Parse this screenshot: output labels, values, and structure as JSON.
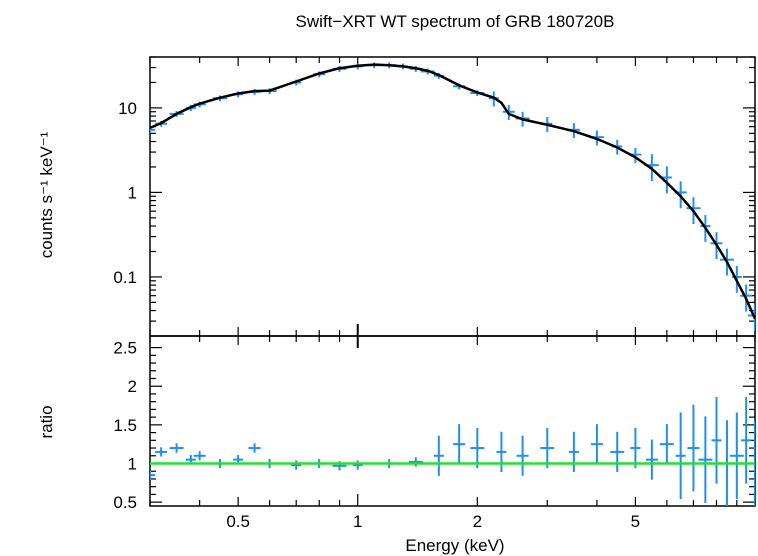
{
  "chart_data": [
    {
      "type": "scatter",
      "panel": "spectrum",
      "title": "Swift−XRT WT spectrum of GRB 180720B",
      "ylabel": "counts s⁻¹ keV⁻¹",
      "xlabel": "",
      "xscale": "log",
      "yscale": "log",
      "xlim": [
        0.3,
        10
      ],
      "ylim": [
        0.02,
        40
      ],
      "yticks": [
        {
          "value": 0.1,
          "label": "0.1"
        },
        {
          "value": 1,
          "label": "1"
        },
        {
          "value": 10,
          "label": "10"
        }
      ],
      "series": [
        {
          "role": "data",
          "color": "#1f8ff0",
          "x": [
            0.3,
            0.32,
            0.35,
            0.38,
            0.4,
            0.45,
            0.5,
            0.55,
            0.6,
            0.7,
            0.8,
            0.9,
            1.0,
            1.1,
            1.2,
            1.3,
            1.4,
            1.5,
            1.6,
            1.8,
            2.0,
            2.2,
            2.4,
            2.6,
            3.0,
            3.5,
            4.0,
            4.5,
            5.0,
            5.5,
            6.0,
            6.5,
            7.0,
            7.5,
            8.0,
            8.5,
            9.0,
            9.5,
            10.0
          ],
          "y": [
            5.5,
            6.5,
            8.5,
            10.0,
            11.0,
            13.0,
            14.5,
            15.5,
            15.8,
            20.0,
            25.0,
            29.0,
            31.0,
            32.0,
            32.0,
            31.0,
            29.0,
            27.0,
            24.0,
            18.0,
            15.0,
            13.0,
            9.0,
            7.5,
            6.5,
            5.5,
            4.5,
            3.5,
            2.8,
            2.1,
            1.5,
            1.0,
            0.65,
            0.4,
            0.25,
            0.16,
            0.1,
            0.06,
            0.035
          ]
        },
        {
          "role": "model",
          "color": "#000000",
          "x": [
            0.3,
            0.32,
            0.35,
            0.38,
            0.4,
            0.45,
            0.5,
            0.55,
            0.6,
            0.7,
            0.8,
            0.9,
            1.0,
            1.1,
            1.2,
            1.3,
            1.4,
            1.5,
            1.6,
            1.8,
            2.0,
            2.2,
            2.3,
            2.4,
            2.6,
            3.0,
            3.5,
            4.0,
            4.5,
            5.0,
            5.5,
            6.0,
            6.5,
            7.0,
            7.5,
            8.0,
            8.5,
            9.0,
            9.5,
            10.0
          ],
          "y": [
            5.8,
            6.6,
            8.5,
            10.2,
            11.2,
            13.2,
            14.8,
            15.8,
            16.0,
            20.5,
            25.5,
            29.5,
            31.5,
            32.5,
            32.0,
            31.0,
            29.5,
            27.5,
            24.5,
            18.5,
            15.2,
            13.2,
            11.5,
            8.5,
            7.3,
            6.3,
            5.3,
            4.3,
            3.4,
            2.6,
            1.9,
            1.3,
            0.9,
            0.6,
            0.38,
            0.24,
            0.15,
            0.09,
            0.055,
            0.032
          ]
        }
      ]
    },
    {
      "type": "scatter",
      "panel": "ratio",
      "title": "",
      "ylabel": "ratio",
      "xlabel": "Energy (keV)",
      "xscale": "log",
      "xlim": [
        0.3,
        10
      ],
      "ylim": [
        0.45,
        2.65
      ],
      "xticks": [
        {
          "value": 0.5,
          "label": "0.5"
        },
        {
          "value": 1,
          "label": "1"
        },
        {
          "value": 2,
          "label": "2"
        },
        {
          "value": 5,
          "label": "5"
        }
      ],
      "yticks": [
        {
          "value": 0.5,
          "label": "0.5"
        },
        {
          "value": 1,
          "label": "1"
        },
        {
          "value": 1.5,
          "label": "1.5"
        },
        {
          "value": 2,
          "label": "2"
        },
        {
          "value": 2.5,
          "label": "2.5"
        }
      ],
      "series": [
        {
          "role": "data",
          "color": "#1f8ff0",
          "x": [
            0.3,
            0.32,
            0.35,
            0.38,
            0.4,
            0.45,
            0.5,
            0.55,
            0.6,
            0.7,
            0.8,
            0.9,
            1.0,
            1.2,
            1.4,
            1.6,
            1.8,
            2.0,
            2.3,
            2.6,
            3.0,
            3.5,
            4.0,
            4.5,
            5.0,
            5.5,
            6.0,
            6.5,
            7.0,
            7.5,
            8.0,
            8.5,
            9.0,
            9.5,
            10.0
          ],
          "y": [
            0.85,
            1.15,
            1.2,
            1.05,
            1.1,
            1.0,
            1.05,
            1.2,
            1.0,
            0.98,
            1.0,
            0.97,
            0.98,
            1.0,
            1.02,
            1.1,
            1.25,
            1.2,
            1.15,
            1.1,
            1.2,
            1.15,
            1.25,
            1.15,
            1.2,
            1.05,
            1.25,
            1.1,
            1.2,
            1.05,
            1.3,
            1.0,
            1.1,
            1.3,
            1.0
          ]
        },
        {
          "role": "reference",
          "color": "#22e030",
          "x": [
            0.3,
            10.0
          ],
          "y": [
            1,
            1
          ]
        }
      ]
    }
  ]
}
